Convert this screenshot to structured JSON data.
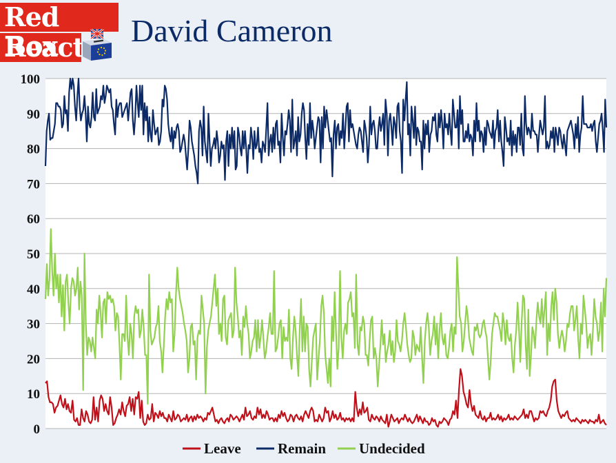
{
  "logo": {
    "line1": "Red Box",
    "line2": "React"
  },
  "chart_data": {
    "type": "line",
    "title": "David Cameron",
    "ylim": [
      0,
      100
    ],
    "yticks": [
      0,
      10,
      20,
      30,
      40,
      50,
      60,
      70,
      80,
      90,
      100
    ],
    "grid": true,
    "legend_position": "bottom",
    "x": "index",
    "series": [
      {
        "name": "Leave",
        "color": "#c0101a",
        "values": [
          13,
          13.5,
          9,
          7.5,
          7.5,
          7,
          4.5,
          6,
          6.5,
          8,
          9.5,
          7,
          6,
          8.5,
          5.5,
          7,
          5,
          4.5,
          8,
          2.5,
          2,
          3,
          1,
          1,
          5.5,
          3,
          2,
          5,
          4,
          2,
          1.5,
          2.5,
          9,
          2.5,
          6,
          2,
          8,
          9.5,
          8.5,
          5,
          7,
          5,
          4,
          9,
          6,
          1,
          1.5,
          3,
          4,
          5.5,
          4,
          7.5,
          5,
          3.5,
          6.5,
          7,
          9,
          5,
          8.5,
          4,
          9,
          8.5,
          10.5,
          3,
          8,
          2,
          1,
          1.5,
          4,
          2.5,
          3,
          7,
          2,
          4.5,
          4,
          3,
          5,
          3.5,
          4.5,
          3,
          3,
          2,
          4,
          3,
          2,
          5,
          2.5,
          3,
          4,
          3.5,
          2,
          2.5,
          3,
          2.5,
          4,
          2,
          3,
          3.5,
          2,
          3.5,
          2.5,
          4,
          3,
          3.5,
          3,
          2,
          3,
          2.5,
          4.5,
          4,
          5,
          6,
          4,
          2,
          2.5,
          1.5,
          2.5,
          3,
          2,
          1.5,
          2.5,
          3,
          2,
          4,
          3.5,
          2.5,
          3,
          3.5,
          3,
          2,
          3,
          4,
          2.5,
          6,
          3.5,
          4,
          5,
          3,
          2.5,
          3.5,
          3,
          6,
          4,
          5.5,
          3,
          4,
          3,
          5,
          4,
          2.5,
          3,
          3,
          2,
          3,
          2,
          4,
          3,
          5,
          3.5,
          4.5,
          3,
          2,
          2.5,
          4,
          3.5,
          2,
          3.5,
          4,
          3,
          2.5,
          3.5,
          2,
          4,
          5,
          4,
          3,
          5,
          6,
          5,
          2,
          2.5,
          2,
          4,
          3,
          2,
          3,
          6,
          4.5,
          5,
          2,
          3,
          5,
          3,
          4,
          2.5,
          3,
          4.5,
          2.5,
          3,
          2,
          3,
          2.5,
          3,
          2,
          3,
          2,
          10.5,
          6,
          3.5,
          5.5,
          4,
          7.5,
          4.5,
          5,
          6,
          2.5,
          2,
          4,
          3,
          2.5,
          3.5,
          3,
          2,
          3.5,
          2.5,
          2,
          1.5,
          4,
          0.5,
          2,
          4,
          3,
          2,
          2.5,
          3,
          1.5,
          2.5,
          3,
          2.5,
          4,
          3,
          2,
          3,
          2,
          1.5,
          2,
          3,
          4,
          2,
          3.5,
          2.5,
          1.5,
          3,
          2,
          2,
          1,
          1.5,
          3,
          2,
          2.5,
          1,
          0.5,
          2,
          1.5,
          2,
          3,
          2.5,
          2,
          1,
          2.5,
          3,
          5,
          4,
          8,
          3,
          11,
          17,
          15,
          10.5,
          9,
          7,
          6,
          11,
          7,
          5,
          6.5,
          4,
          3.5,
          3,
          5,
          3,
          2.5,
          3.5,
          2,
          3,
          3,
          4.5,
          2.5,
          3,
          2.5,
          3,
          4,
          2.5,
          3.5,
          2,
          3,
          2.5,
          3,
          4,
          2.5,
          3,
          2.5,
          3.5,
          3,
          2.5,
          3,
          3.5,
          4,
          5.5,
          3,
          4,
          3,
          5,
          5,
          3.5,
          2,
          3,
          2.5,
          3,
          5,
          4.5,
          5,
          4,
          3.5,
          5,
          6,
          8,
          12,
          13.5,
          14,
          8,
          5,
          4,
          3,
          4,
          3.5,
          4.5,
          5,
          3,
          2.5,
          2,
          2.5,
          2,
          3,
          2.5,
          2,
          1.5,
          2.5,
          2,
          2.5,
          2,
          1.5,
          2.5,
          2,
          2,
          1.5,
          2.5,
          2,
          4,
          1.5,
          2,
          2.5,
          1.5,
          1
        ]
      },
      {
        "name": "Remain",
        "color": "#0c2a66",
        "values": [
          75,
          85,
          88,
          90,
          82.5,
          83,
          83,
          85,
          87,
          93,
          93,
          92,
          92,
          91,
          86,
          87,
          95,
          90,
          91,
          85,
          96,
          100,
          97,
          100,
          98,
          92,
          88,
          95,
          100,
          92,
          88,
          90,
          91,
          95,
          90,
          82,
          92,
          87,
          86,
          89,
          96,
          89,
          88,
          97,
          90,
          91,
          92,
          95,
          94,
          98,
          93,
          95,
          98,
          97,
          96,
          97,
          92,
          91,
          87,
          84,
          94,
          89,
          92,
          93,
          93,
          89,
          90,
          91,
          92,
          93,
          88,
          92,
          96,
          97,
          88,
          84,
          89,
          98,
          93,
          89,
          98,
          91,
          98,
          84,
          93,
          88,
          92,
          82,
          89,
          84,
          82,
          91,
          87,
          84,
          85,
          86,
          81,
          82,
          85,
          94,
          92,
          98,
          97,
          94,
          87,
          84,
          82,
          86,
          80,
          85,
          83,
          86,
          87,
          85,
          79,
          80,
          82,
          84,
          82,
          78,
          74,
          80,
          88,
          86,
          82,
          80,
          78,
          75,
          73,
          70,
          85,
          88,
          86,
          78,
          92,
          82,
          79,
          76,
          90,
          82,
          75,
          80,
          81,
          83,
          80,
          85,
          82,
          76,
          78,
          82,
          80,
          81,
          71,
          82,
          85,
          75,
          84,
          80,
          86,
          80,
          85,
          74,
          75,
          86,
          84,
          80,
          78,
          85,
          80,
          85,
          80,
          73,
          81,
          80,
          86,
          83,
          77,
          85,
          80,
          81,
          86,
          79,
          80,
          76,
          82,
          81,
          79,
          86,
          93,
          78,
          82,
          84,
          79,
          86,
          80,
          87,
          88,
          81,
          82,
          76,
          90,
          83,
          78,
          85,
          84,
          87,
          91,
          88,
          79,
          94,
          80,
          82,
          85,
          78,
          89,
          82,
          84,
          90,
          93,
          91,
          83,
          77,
          87,
          81,
          93,
          83,
          88,
          85,
          80,
          83,
          86,
          89,
          88,
          76,
          89,
          80,
          92,
          86,
          91,
          88,
          85,
          82,
          83,
          72,
          84,
          88,
          80,
          86,
          87,
          81,
          85,
          83,
          90,
          80,
          86,
          92,
          93,
          82,
          91,
          86,
          87,
          85,
          83,
          81,
          80,
          84,
          86,
          85,
          82,
          79,
          88,
          86,
          83,
          76,
          81,
          92,
          84,
          87,
          88,
          85,
          80,
          80,
          86,
          89,
          85,
          87,
          90,
          81,
          94,
          90,
          78,
          88,
          90,
          86,
          81,
          89,
          87,
          83,
          92,
          93,
          85,
          82,
          73,
          94,
          88,
          94,
          99,
          84,
          87,
          78,
          92,
          88,
          83,
          92,
          81,
          86,
          85,
          82,
          82,
          74,
          88,
          80,
          87,
          84,
          88,
          79,
          84,
          85,
          89,
          88,
          90,
          84,
          82,
          90,
          86,
          91,
          87,
          80,
          90,
          86,
          87,
          84,
          90,
          85,
          81,
          94,
          90,
          86,
          86,
          91,
          80,
          95,
          87,
          91,
          82,
          82,
          85,
          83,
          87,
          82,
          84,
          83,
          78,
          88,
          82,
          93,
          85,
          88,
          82,
          85,
          84,
          79,
          86,
          81,
          88,
          87,
          85,
          84,
          83,
          88,
          80,
          85,
          86,
          91,
          82,
          88,
          82,
          79,
          75,
          89,
          86,
          82,
          83,
          81,
          88,
          78,
          85,
          81,
          84,
          79,
          86,
          86,
          81,
          90,
          80,
          78,
          95,
          87,
          84,
          86,
          85,
          83,
          90,
          85,
          85,
          84,
          84,
          79,
          84,
          88,
          86,
          84,
          86,
          95,
          80,
          82,
          80,
          81,
          85,
          83,
          86,
          79,
          86,
          84,
          81,
          86,
          85,
          82,
          80,
          84,
          81,
          78,
          85,
          86,
          87,
          88,
          86,
          84,
          80,
          87,
          83,
          89,
          79,
          84,
          86,
          95,
          87,
          87,
          87,
          86,
          86,
          86,
          87,
          85,
          87,
          88,
          82,
          79,
          83,
          87,
          88,
          90,
          85,
          79,
          94,
          86
        ]
      },
      {
        "name": "Undecided",
        "color": "#92d050",
        "values": [
          37,
          47,
          38,
          43,
          57,
          45,
          38,
          50,
          40,
          44,
          36,
          44,
          32,
          41,
          28,
          42,
          44,
          36,
          30,
          40,
          43,
          42,
          38,
          40,
          46,
          34,
          42,
          38,
          11,
          50,
          30,
          21,
          26,
          25,
          22,
          26,
          23,
          20,
          34,
          30,
          38,
          33,
          26,
          36,
          37,
          30,
          39,
          37,
          38,
          36,
          37,
          35,
          28,
          33,
          32,
          24,
          14,
          27,
          27,
          25,
          38,
          26,
          21,
          30,
          27,
          20,
          32,
          35,
          33,
          34,
          26,
          28,
          34,
          29,
          21,
          21,
          7,
          44,
          28,
          24,
          25,
          26,
          29,
          30,
          35,
          25,
          22,
          16,
          24,
          32,
          37,
          34,
          39,
          36,
          37,
          22,
          27,
          38,
          46,
          40,
          37,
          35,
          33,
          30,
          28,
          25,
          16,
          20,
          29,
          30,
          24,
          25,
          14,
          26,
          28,
          27,
          38,
          34,
          30,
          10,
          23,
          28,
          30,
          32,
          36,
          40,
          44,
          35,
          40,
          27,
          30,
          25,
          37,
          38,
          26,
          24,
          31,
          32,
          33,
          26,
          28,
          46,
          36,
          32,
          26,
          28,
          21,
          32,
          29,
          35,
          30,
          27,
          20,
          22,
          25,
          26,
          31,
          22,
          31,
          23,
          26,
          31,
          26,
          20,
          22,
          26,
          29,
          33,
          27,
          27,
          45,
          22,
          23,
          26,
          30,
          31,
          20,
          29,
          25,
          26,
          25,
          34,
          20,
          17,
          26,
          32,
          28,
          21,
          15,
          28,
          37,
          22,
          32,
          22,
          30,
          29,
          17,
          12,
          19,
          26,
          28,
          30,
          14,
          20,
          25,
          35,
          38,
          33,
          21,
          17,
          13,
          20,
          12,
          32,
          25,
          39,
          28,
          17,
          23,
          45,
          26,
          20,
          28,
          30,
          27,
          36,
          37,
          39,
          32,
          33,
          23,
          44,
          24,
          21,
          29,
          28,
          32,
          30,
          21,
          21,
          18,
          25,
          31,
          32,
          20,
          23,
          20,
          12,
          18,
          24,
          31,
          24,
          27,
          19,
          22,
          24,
          28,
          21,
          25,
          19,
          22,
          31,
          25,
          24,
          22,
          25,
          30,
          33,
          29,
          24,
          21,
          19,
          20,
          28,
          26,
          21,
          24,
          23,
          22,
          29,
          20,
          13,
          25,
          30,
          33,
          29,
          21,
          25,
          27,
          32,
          24,
          30,
          20,
          28,
          33,
          26,
          24,
          27,
          21,
          20,
          23,
          28,
          30,
          22,
          29,
          27,
          49,
          40,
          32,
          30,
          22,
          25,
          30,
          35,
          32,
          26,
          24,
          22,
          21,
          29,
          28,
          30,
          27,
          26,
          27,
          30,
          31,
          28,
          26,
          20,
          14,
          19,
          27,
          30,
          33,
          32,
          32,
          30,
          28,
          25,
          33,
          30,
          24,
          31,
          26,
          25,
          27,
          20,
          16,
          24,
          28,
          36,
          29,
          19,
          30,
          38,
          37,
          24,
          17,
          34,
          15,
          21,
          29,
          27,
          23,
          31,
          36,
          32,
          30,
          37,
          29,
          34,
          39,
          21,
          30,
          25,
          35,
          39,
          31,
          40,
          36,
          27,
          23,
          26,
          28,
          26,
          22,
          25,
          30,
          29,
          33,
          35,
          35,
          28,
          31,
          35,
          26,
          20,
          30,
          27,
          38,
          34,
          30,
          23,
          26,
          27,
          21,
          28,
          37,
          32,
          30,
          25,
          28,
          36,
          22,
          40,
          32,
          43
        ]
      }
    ]
  }
}
